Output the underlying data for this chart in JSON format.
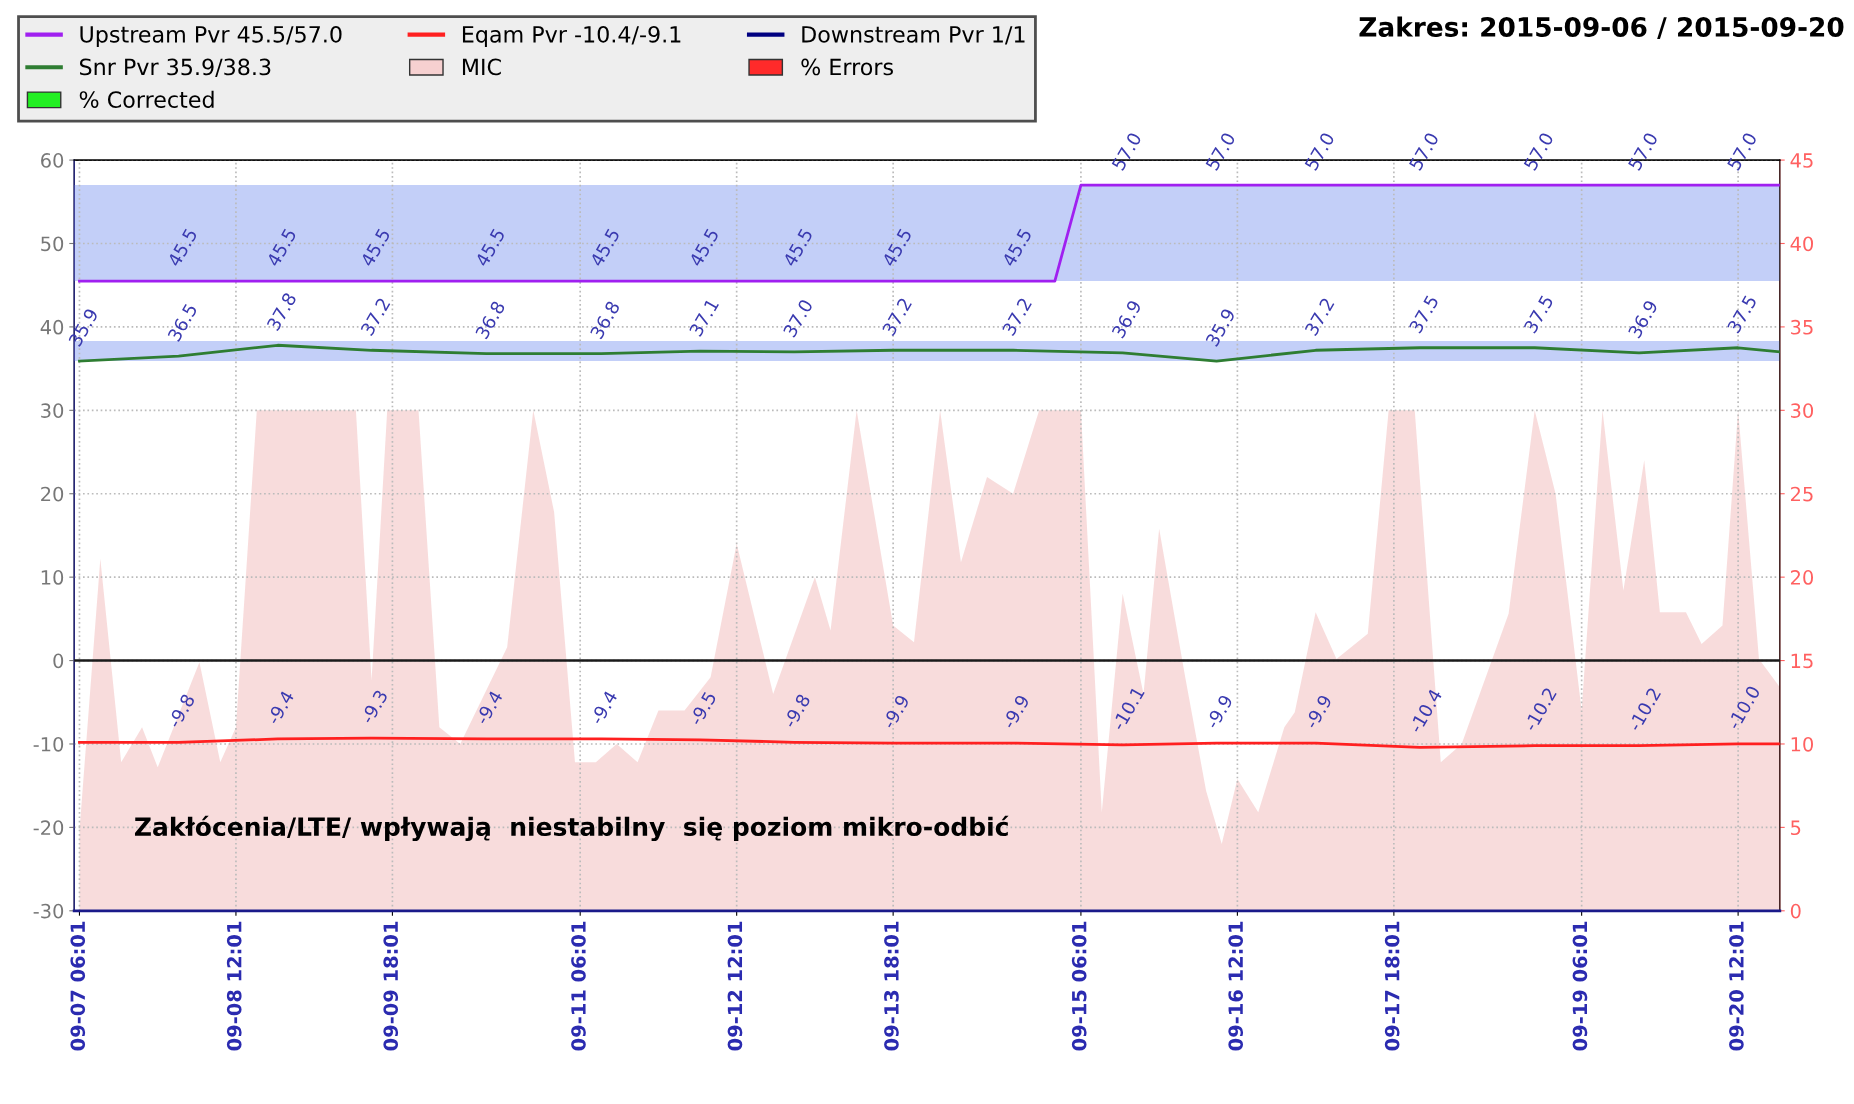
{
  "chart_data": {
    "type": "line",
    "title": "Zakres: 2015-09-06 / 2015-09-20",
    "xlim": [
      "2015-09-07T05:00",
      "2015-09-20T20:01"
    ],
    "xticks": [
      {
        "value": "2015-09-07T06:01",
        "label": "09-07 06:01"
      },
      {
        "value": "2015-09-08T12:01",
        "label": "09-08 12:01"
      },
      {
        "value": "2015-09-09T18:01",
        "label": "09-09 18:01"
      },
      {
        "value": "2015-09-11T06:01",
        "label": "09-11 06:01"
      },
      {
        "value": "2015-09-12T12:01",
        "label": "09-12 12:01"
      },
      {
        "value": "2015-09-13T18:01",
        "label": "09-13 18:01"
      },
      {
        "value": "2015-09-15T06:01",
        "label": "09-15 06:01"
      },
      {
        "value": "2015-09-16T12:01",
        "label": "09-16 12:01"
      },
      {
        "value": "2015-09-17T18:01",
        "label": "09-17 18:01"
      },
      {
        "value": "2015-09-19T06:01",
        "label": "09-19 06:01"
      },
      {
        "value": "2015-09-20T12:01",
        "label": "09-20 12:01"
      }
    ],
    "ylim": [
      -30,
      60
    ],
    "yticks": [
      -30,
      -20,
      -10,
      0,
      10,
      20,
      30,
      40,
      50,
      60
    ],
    "y2lim": [
      0,
      45
    ],
    "y2ticks": [
      0,
      5,
      10,
      15,
      20,
      25,
      30,
      35,
      40,
      45
    ],
    "grid": true,
    "legend": "top left",
    "marker": "none",
    "line_style": "solid",
    "series": [
      {
        "name": "Upstream Pvr 45.5/57.0",
        "color": "#a020f0",
        "x": [
          "2015-09-07T06:01",
          "2015-09-08T01:01",
          "2015-09-08T20:01",
          "2015-09-09T14:01",
          "2015-09-10T12:01",
          "2015-09-11T10:01",
          "2015-09-12T05:01",
          "2015-09-12T23:01",
          "2015-09-13T18:01",
          "2015-09-14T17:01",
          "2015-09-15T01:01",
          "2015-09-15T06:01",
          "2015-09-15T14:01",
          "2015-09-16T08:01",
          "2015-09-17T03:01",
          "2015-09-17T23:01",
          "2015-09-18T21:01",
          "2015-09-19T17:01",
          "2015-09-20T12:01",
          "2015-09-20T20:01"
        ],
        "values": [
          45.5,
          45.5,
          45.5,
          45.5,
          45.5,
          45.5,
          45.5,
          45.5,
          45.5,
          45.5,
          45.5,
          57.0,
          57.0,
          57.0,
          57.0,
          57.0,
          57.0,
          57.0,
          57.0,
          57.0
        ],
        "value_labels": [
          null,
          "45.5",
          "45.5",
          "45.5",
          "45.5",
          "45.5",
          "45.5",
          "45.5",
          "45.5",
          "45.5",
          null,
          null,
          "57.0",
          "57.0",
          "57.0",
          "57.0",
          "57.0",
          "57.0",
          "57.0",
          null
        ]
      },
      {
        "name": "Eqam Pvr -10.4/-9.1",
        "color": "#ff2020",
        "x": [
          "2015-09-07T06:01",
          "2015-09-08T01:01",
          "2015-09-08T20:01",
          "2015-09-09T14:01",
          "2015-09-10T12:01",
          "2015-09-11T10:01",
          "2015-09-12T05:01",
          "2015-09-12T23:01",
          "2015-09-13T18:01",
          "2015-09-14T17:01",
          "2015-09-15T14:01",
          "2015-09-16T08:01",
          "2015-09-17T03:01",
          "2015-09-17T23:01",
          "2015-09-18T21:01",
          "2015-09-19T17:01",
          "2015-09-20T12:01",
          "2015-09-20T20:01"
        ],
        "values": [
          -9.8,
          -9.8,
          -9.4,
          -9.3,
          -9.4,
          -9.4,
          -9.5,
          -9.8,
          -9.9,
          -9.9,
          -10.1,
          -9.9,
          -9.9,
          -10.4,
          -10.2,
          -10.2,
          -10.0,
          -10.0
        ],
        "value_labels": [
          null,
          "-9.8",
          "-9.4",
          "-9.3",
          "-9.4",
          "-9.4",
          "-9.5",
          "-9.8",
          "-9.9",
          "-9.9",
          "-10.1",
          "-9.9",
          "-9.9",
          "-10.4",
          "-10.2",
          "-10.2",
          "-10.0",
          null
        ]
      },
      {
        "name": "Downstream Pvr 1/1",
        "color": "#000080"
      },
      {
        "name": "Snr Pvr 35.9/38.3",
        "color": "#2e7d32",
        "x": [
          "2015-09-07T06:01",
          "2015-09-08T01:01",
          "2015-09-08T20:01",
          "2015-09-09T14:01",
          "2015-09-10T12:01",
          "2015-09-11T10:01",
          "2015-09-12T05:01",
          "2015-09-12T23:01",
          "2015-09-13T18:01",
          "2015-09-14T17:01",
          "2015-09-15T14:01",
          "2015-09-16T08:01",
          "2015-09-17T03:01",
          "2015-09-17T23:01",
          "2015-09-18T21:01",
          "2015-09-19T17:01",
          "2015-09-20T12:01",
          "2015-09-20T20:01"
        ],
        "values": [
          35.9,
          36.5,
          37.8,
          37.2,
          36.8,
          36.8,
          37.1,
          37.0,
          37.2,
          37.2,
          36.9,
          35.9,
          37.2,
          37.5,
          37.5,
          36.9,
          37.5,
          37.0
        ],
        "value_labels": [
          "35.9",
          "36.5",
          "37.8",
          "37.2",
          "36.8",
          "36.8",
          "37.1",
          "37.0",
          "37.2",
          "37.2",
          "36.9",
          "35.9",
          "37.2",
          "37.5",
          "37.5",
          "36.9",
          "37.5",
          null
        ]
      },
      {
        "name": "MIC",
        "type": "area",
        "axis": "y2",
        "color": "#f6d0d0",
        "x": [
          "2015-09-07T06:01",
          "2015-09-07T10:01",
          "2015-09-07T14:01",
          "2015-09-07T18:01",
          "2015-09-07T21:01",
          "2015-09-08T05:01",
          "2015-09-08T09:01",
          "2015-09-08T12:01",
          "2015-09-08T16:01",
          "2015-09-09T11:01",
          "2015-09-09T14:01",
          "2015-09-09T17:01",
          "2015-09-09T23:01",
          "2015-09-10T03:01",
          "2015-09-10T07:01",
          "2015-09-10T16:01",
          "2015-09-10T21:01",
          "2015-09-11T01:01",
          "2015-09-11T05:01",
          "2015-09-11T09:01",
          "2015-09-11T13:01",
          "2015-09-11T17:01",
          "2015-09-11T21:01",
          "2015-09-12T02:01",
          "2015-09-12T07:01",
          "2015-09-12T12:01",
          "2015-09-12T19:01",
          "2015-09-13T03:01",
          "2015-09-13T06:01",
          "2015-09-13T11:01",
          "2015-09-13T18:01",
          "2015-09-13T22:01",
          "2015-09-14T03:01",
          "2015-09-14T07:01",
          "2015-09-14T12:01",
          "2015-09-14T17:01",
          "2015-09-14T22:01",
          "2015-09-15T06:01",
          "2015-09-15T10:01",
          "2015-09-15T14:01",
          "2015-09-15T18:01",
          "2015-09-15T21:01",
          "2015-09-16T02:01",
          "2015-09-16T06:01",
          "2015-09-16T09:01",
          "2015-09-16T12:01",
          "2015-09-16T16:01",
          "2015-09-16T21:01",
          "2015-09-16T23:01",
          "2015-09-17T03:01",
          "2015-09-17T07:01",
          "2015-09-17T13:01",
          "2015-09-17T17:01",
          "2015-09-17T22:01",
          "2015-09-18T03:01",
          "2015-09-18T07:01",
          "2015-09-18T16:01",
          "2015-09-18T21:01",
          "2015-09-19T01:01",
          "2015-09-19T06:01",
          "2015-09-19T10:01",
          "2015-09-19T14:01",
          "2015-09-19T18:01",
          "2015-09-19T21:01",
          "2015-09-20T02:01",
          "2015-09-20T05:01",
          "2015-09-20T09:01",
          "2015-09-20T12:01",
          "2015-09-20T16:01",
          "2015-09-20T20:01"
        ],
        "values": [
          4.8,
          21.1,
          8.9,
          11,
          8.6,
          14.9,
          8.9,
          11,
          30,
          30,
          13.8,
          30,
          30,
          11,
          10,
          15.8,
          30,
          23.9,
          8.9,
          8.9,
          10,
          8.9,
          12,
          12,
          14,
          22,
          13,
          20,
          16.8,
          30,
          17.1,
          16.1,
          30,
          20.9,
          26,
          25,
          30,
          30,
          5.9,
          19,
          13,
          22.9,
          14,
          7.2,
          4,
          7.9,
          5.9,
          11,
          11.9,
          17.9,
          15.1,
          16.6,
          30,
          30,
          8.9,
          10,
          17.8,
          30,
          25,
          12,
          30,
          19.2,
          27,
          17.9,
          17.9,
          16,
          17.1,
          30,
          15.1,
          13.4
        ]
      },
      {
        "name": "% Errors",
        "type": "area",
        "color": "#ff2a2a"
      },
      {
        "name": "% Corrected",
        "type": "area",
        "color": "#22ee22"
      }
    ],
    "bands": [
      {
        "axis": "y",
        "from": 45.5,
        "to": 57.0,
        "color": "#c3cff8"
      },
      {
        "axis": "y",
        "from": 35.9,
        "to": 38.3,
        "color": "#c3cff8"
      }
    ],
    "ref_lines": [
      {
        "axis": "y",
        "value": 0,
        "color": "#1a1a1a",
        "line_style": "solid"
      }
    ],
    "annotations": [
      "Zakłócenia/LTE/ wpływają  niestabilny  się poziom mikro-odbić"
    ]
  }
}
